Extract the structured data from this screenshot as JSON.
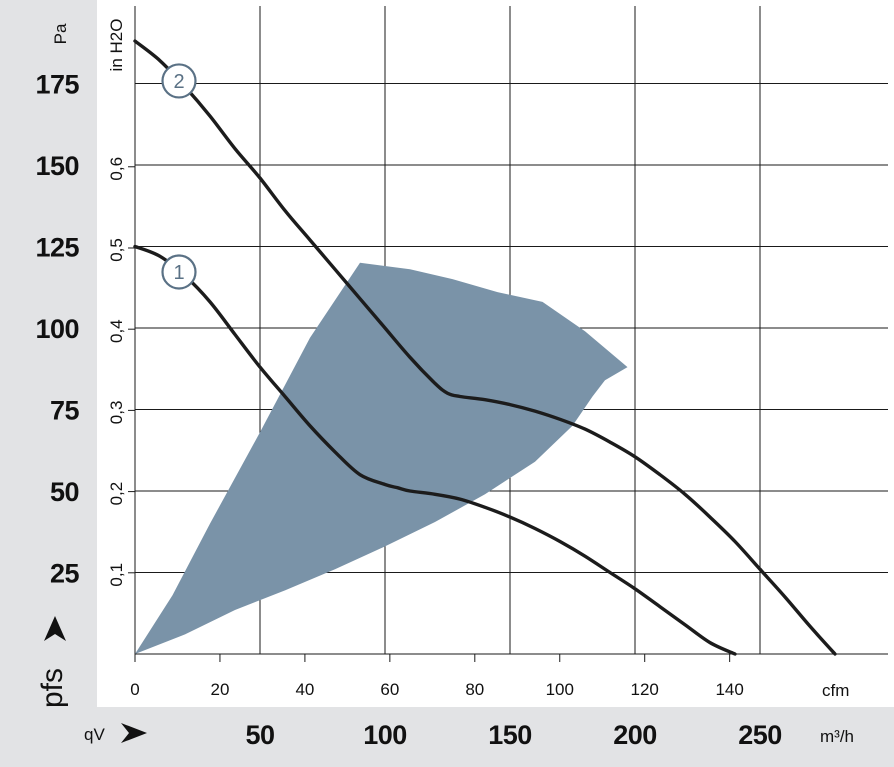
{
  "chart_data": {
    "type": "line",
    "title": "",
    "curves": [
      {
        "name": "1",
        "x_m3h": [
          0,
          10,
          20,
          30,
          40,
          50,
          60,
          70,
          80,
          90,
          100,
          105,
          110,
          120,
          130,
          140,
          150,
          160,
          170,
          180,
          190,
          200,
          210,
          220,
          230,
          240
        ],
        "y_pa": [
          125,
          122,
          116,
          108,
          98,
          88,
          79,
          70,
          62,
          55,
          52,
          51,
          50,
          49,
          47.5,
          45,
          42,
          38.5,
          34.5,
          30,
          25,
          20,
          14.5,
          9,
          3.5,
          0
        ]
      },
      {
        "name": "2",
        "x_m3h": [
          0,
          10,
          20,
          30,
          40,
          50,
          60,
          70,
          80,
          90,
          100,
          110,
          120,
          125,
          130,
          140,
          150,
          160,
          170,
          180,
          190,
          200,
          210,
          220,
          230,
          240,
          250,
          260,
          270,
          280
        ],
        "y_pa": [
          188,
          182,
          174,
          165,
          155,
          146,
          136,
          127,
          118,
          109,
          100,
          91,
          83,
          80,
          79,
          78,
          76.5,
          74.5,
          72,
          69,
          65,
          60.5,
          55,
          49,
          42,
          34.5,
          26,
          17.5,
          8.5,
          0
        ]
      }
    ],
    "operating_region": {
      "x_m3h": [
        0,
        20,
        40,
        60,
        80,
        100,
        120,
        140,
        160,
        175,
        183,
        188,
        197,
        180,
        163,
        145,
        127,
        110,
        90,
        70,
        50,
        30,
        15,
        0
      ],
      "y_pa": [
        0,
        6,
        13.5,
        19.5,
        26,
        33,
        40.5,
        49,
        59,
        70,
        79,
        84,
        88,
        99,
        108,
        111,
        115,
        118,
        120,
        97,
        68,
        40,
        18,
        0
      ]
    },
    "primary_x_axis": {
      "unit": "m³/h",
      "label": "qV",
      "ticks": [
        "50",
        "100",
        "150",
        "200",
        "250"
      ],
      "range": [
        0,
        290
      ]
    },
    "secondary_x_axis": {
      "unit": "cfm",
      "ticks": [
        "0",
        "20",
        "40",
        "60",
        "80",
        "100",
        "120",
        "140"
      ]
    },
    "primary_y_axis": {
      "unit": "Pa",
      "label": "pfs",
      "ticks": [
        "25",
        "50",
        "75",
        "100",
        "125",
        "150",
        "175"
      ],
      "range": [
        0,
        200
      ]
    },
    "secondary_y_axis": {
      "unit": "in H2O",
      "ticks": [
        "0,1",
        "0,2",
        "0,3",
        "0,4",
        "0,5",
        "0,6"
      ]
    },
    "grid": true,
    "colors": {
      "curve": "#1c1c1c",
      "region": "#7a93a8",
      "left_band": "#e2e3e5",
      "bottom_band": "#e2e3e5",
      "marker_ring": "#5a7185"
    }
  }
}
